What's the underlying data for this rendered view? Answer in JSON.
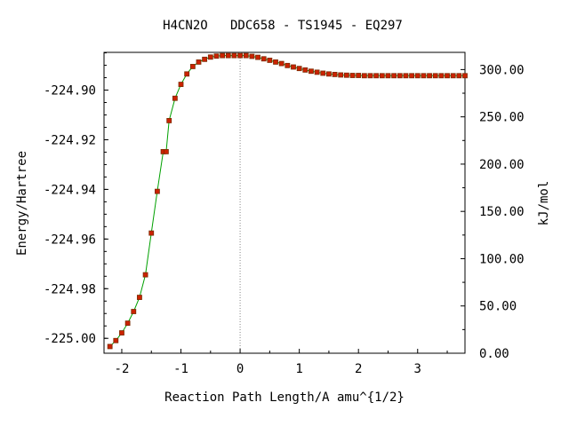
{
  "chart_data": {
    "type": "line",
    "title": "H4CN2O   DDC658 - TS1945 - EQ297",
    "xlabel": "Reaction Path Length/A amu^{1/2}",
    "ylabel_left": "Energy/Hartree",
    "ylabel_right": "kJ/mol",
    "xlim": [
      -2.3,
      3.8
    ],
    "ylim_left": [
      -225.006,
      -224.8848
    ],
    "ylim_right": [
      0,
      318.2
    ],
    "x_ticks": [
      -2,
      -1,
      0,
      1,
      2,
      3
    ],
    "x_tick_labels": [
      "-2",
      "-1",
      "0",
      "1",
      "2",
      "3"
    ],
    "y_left_ticks": [
      -224.9,
      -224.92,
      -224.94,
      -224.96,
      -224.98,
      -225.0
    ],
    "y_left_tick_labels": [
      "-224.90",
      "-224.92",
      "-224.94",
      "-224.96",
      "-224.98",
      "-225.00"
    ],
    "y_right_ticks": [
      300,
      250,
      200,
      150,
      100,
      50,
      0
    ],
    "y_right_tick_labels": [
      "300.00",
      "250.00",
      "200.00",
      "150.00",
      "100.00",
      "50.00",
      "0.00"
    ],
    "ts_marker_x": 0,
    "grid": false,
    "colors": {
      "line": "#00a000",
      "point": "#cc2200",
      "point_edge": "#7a2a00",
      "ts_line": "#888888",
      "axis": "#000000"
    },
    "series": [
      {
        "x": [
          -2.2,
          -2.1,
          -2.0,
          -1.9,
          -1.8,
          -1.7,
          -1.6,
          -1.5,
          -1.4,
          -1.3,
          -1.25,
          -1.2,
          -1.1,
          -1.0,
          -0.9,
          -0.8,
          -0.7,
          -0.6,
          -0.5,
          -0.4,
          -0.3,
          -0.2,
          -0.1,
          0.0,
          0.1,
          0.2,
          0.3,
          0.4,
          0.5,
          0.6,
          0.7,
          0.8,
          0.9,
          1.0,
          1.1,
          1.2,
          1.3,
          1.4,
          1.5,
          1.6,
          1.7,
          1.8,
          1.9,
          2.0,
          2.1,
          2.2,
          2.3,
          2.4,
          2.5,
          2.6,
          2.7,
          2.8,
          2.9,
          3.0,
          3.1,
          3.2,
          3.3,
          3.4,
          3.5,
          3.6,
          3.7,
          3.8
        ],
        "y": [
          -225.0033,
          -225.0009,
          -224.9978,
          -224.9939,
          -224.9892,
          -224.9835,
          -224.9744,
          -224.9576,
          -224.9408,
          -224.9248,
          -224.9248,
          -224.9123,
          -224.9033,
          -224.8977,
          -224.8935,
          -224.8905,
          -224.8887,
          -224.8876,
          -224.8867,
          -224.8863,
          -224.8861,
          -224.8861,
          -224.8861,
          -224.8861,
          -224.8861,
          -224.8864,
          -224.8868,
          -224.8874,
          -224.888,
          -224.8887,
          -224.8893,
          -224.8901,
          -224.8907,
          -224.8913,
          -224.8919,
          -224.8924,
          -224.8928,
          -224.8932,
          -224.8935,
          -224.8937,
          -224.8939,
          -224.894,
          -224.8941,
          -224.8941,
          -224.8942,
          -224.8942,
          -224.8942,
          -224.8942,
          -224.8942,
          -224.8942,
          -224.8942,
          -224.8942,
          -224.8942,
          -224.8942,
          -224.8942,
          -224.8942,
          -224.8942,
          -224.8942,
          -224.8942,
          -224.8942,
          -224.8942,
          -224.8942
        ]
      }
    ]
  }
}
